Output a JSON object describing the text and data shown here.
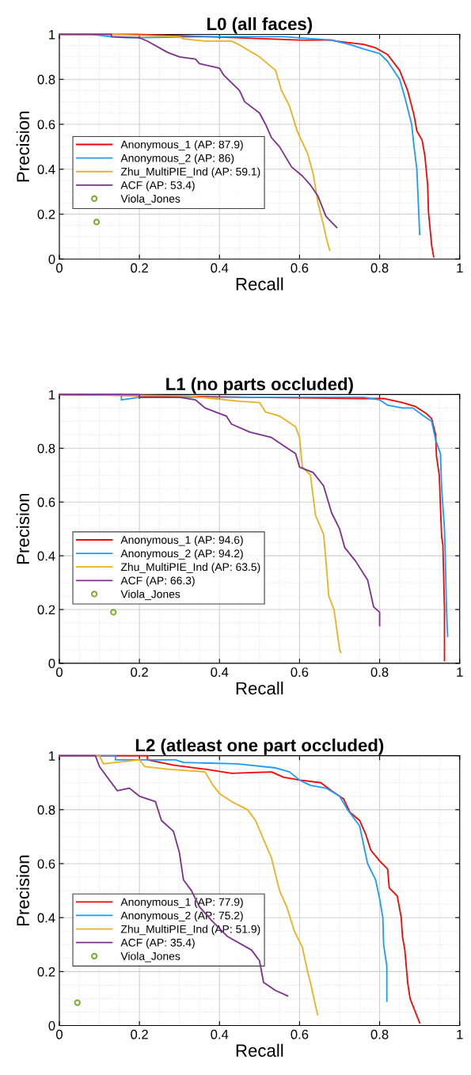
{
  "chart_data": [
    {
      "type": "line",
      "title": "L0 (all faces)",
      "xlabel": "Recall",
      "ylabel": "Precision",
      "xlim": [
        0,
        1
      ],
      "ylim": [
        0,
        1
      ],
      "xticks": [
        0,
        0.2,
        0.4,
        0.6,
        0.8,
        1
      ],
      "yticks": [
        0,
        0.2,
        0.4,
        0.6,
        0.8,
        1
      ],
      "grid": true,
      "legend": "left",
      "marker": "none",
      "line_style": "solid",
      "series": [
        {
          "name": "Anonymous_1 (AP: 87.9)",
          "color": "#ff0000",
          "x": [
            0,
            0.19,
            0.43,
            0.6,
            0.68,
            0.69,
            0.76,
            0.79,
            0.82,
            0.85,
            0.87,
            0.886,
            0.893,
            0.906,
            0.913,
            0.92,
            0.922,
            0.93,
            0.935
          ],
          "values": [
            1,
            1,
            0.986,
            0.975,
            0.975,
            0.97,
            0.955,
            0.94,
            0.91,
            0.84,
            0.75,
            0.64,
            0.57,
            0.53,
            0.46,
            0.33,
            0.21,
            0.06,
            0.01
          ]
        },
        {
          "name": "Anonymous_2 (AP: 86)",
          "color": "#1a9cff",
          "x": [
            0,
            0.08,
            0.128,
            0.167,
            0.2,
            0.36,
            0.56,
            0.68,
            0.725,
            0.76,
            0.8,
            0.82,
            0.85,
            0.863,
            0.88,
            0.886,
            0.893,
            0.9
          ],
          "values": [
            1,
            1,
            0.99,
            0.985,
            0.985,
            0.99,
            0.99,
            0.975,
            0.955,
            0.935,
            0.915,
            0.88,
            0.8,
            0.72,
            0.6,
            0.5,
            0.4,
            0.11
          ]
        },
        {
          "name": "Zhu_MultiPIE_Ind (AP: 59.1)",
          "color": "#edb120",
          "x": [
            0,
            0.13,
            0.3,
            0.31,
            0.364,
            0.43,
            0.443,
            0.5,
            0.52,
            0.54,
            0.555,
            0.575,
            0.594,
            0.62,
            0.634,
            0.646,
            0.66,
            0.666,
            0.675
          ],
          "values": [
            1,
            1,
            0.99,
            0.98,
            0.97,
            0.97,
            0.96,
            0.9,
            0.87,
            0.84,
            0.75,
            0.68,
            0.57,
            0.47,
            0.38,
            0.25,
            0.15,
            0.1,
            0.04
          ]
        },
        {
          "name": "ACF (AP: 53.4)",
          "color": "#7e2f8e",
          "x": [
            0,
            0.13,
            0.13,
            0.2,
            0.22,
            0.27,
            0.3,
            0.34,
            0.35,
            0.4,
            0.41,
            0.45,
            0.463,
            0.5,
            0.515,
            0.53,
            0.55,
            0.58,
            0.607,
            0.627,
            0.646,
            0.666,
            0.693
          ],
          "values": [
            1,
            1,
            0.99,
            0.985,
            0.97,
            0.92,
            0.9,
            0.89,
            0.87,
            0.85,
            0.82,
            0.75,
            0.7,
            0.65,
            0.6,
            0.54,
            0.5,
            0.41,
            0.37,
            0.33,
            0.28,
            0.19,
            0.14
          ]
        },
        {
          "name": "Viola_Jones",
          "type": "scatter",
          "marker": "circle",
          "color": "#77ac30",
          "x": [
            0.093
          ],
          "values": [
            0.165
          ]
        }
      ]
    },
    {
      "type": "line",
      "title": "L1 (no parts occluded)",
      "xlabel": "Recall",
      "ylabel": "Precision",
      "xlim": [
        0,
        1
      ],
      "ylim": [
        0,
        1
      ],
      "xticks": [
        0,
        0.2,
        0.4,
        0.6,
        0.8,
        1
      ],
      "yticks": [
        0,
        0.2,
        0.4,
        0.6,
        0.8,
        1
      ],
      "grid": true,
      "legend": "left",
      "marker": "none",
      "line_style": "solid",
      "series": [
        {
          "name": "Anonymous_1 (AP: 94.6)",
          "color": "#ff0000",
          "x": [
            0,
            0.48,
            0.76,
            0.81,
            0.857,
            0.89,
            0.916,
            0.93,
            0.94,
            0.942,
            0.949,
            0.952,
            0.955,
            0.958,
            0.962,
            0.962
          ],
          "values": [
            1,
            0.99,
            0.985,
            0.985,
            0.97,
            0.955,
            0.93,
            0.91,
            0.85,
            0.77,
            0.7,
            0.58,
            0.47,
            0.44,
            0.2,
            0.01
          ]
        },
        {
          "name": "Anonymous_2 (AP: 94.2)",
          "color": "#1a9cff",
          "x": [
            0,
            0.155,
            0.155,
            0.2,
            0.76,
            0.8,
            0.82,
            0.857,
            0.883,
            0.91,
            0.93,
            0.94,
            0.952,
            0.955,
            0.962,
            0.964,
            0.967,
            0.97
          ],
          "values": [
            1,
            1,
            0.98,
            0.99,
            0.99,
            0.98,
            0.96,
            0.95,
            0.95,
            0.92,
            0.9,
            0.83,
            0.78,
            0.65,
            0.5,
            0.4,
            0.2,
            0.1
          ]
        },
        {
          "name": "Zhu_MultiPIE_Ind (AP: 63.5)",
          "color": "#edb120",
          "x": [
            0,
            0.32,
            0.384,
            0.45,
            0.5,
            0.515,
            0.55,
            0.59,
            0.6,
            0.607,
            0.627,
            0.64,
            0.66,
            0.666,
            0.673,
            0.686,
            0.7,
            0.703
          ],
          "values": [
            1,
            0.995,
            0.985,
            0.975,
            0.97,
            0.935,
            0.92,
            0.88,
            0.84,
            0.73,
            0.7,
            0.55,
            0.48,
            0.38,
            0.25,
            0.2,
            0.05,
            0.04
          ]
        },
        {
          "name": "ACF (AP: 66.3)",
          "color": "#7e2f8e",
          "x": [
            0,
            0.2,
            0.2,
            0.3,
            0.34,
            0.364,
            0.417,
            0.43,
            0.476,
            0.53,
            0.56,
            0.59,
            0.6,
            0.634,
            0.66,
            0.68,
            0.7,
            0.713,
            0.74,
            0.77,
            0.785,
            0.8,
            0.8
          ],
          "values": [
            1,
            1,
            0.99,
            0.99,
            0.98,
            0.95,
            0.92,
            0.89,
            0.86,
            0.84,
            0.81,
            0.78,
            0.73,
            0.71,
            0.66,
            0.56,
            0.5,
            0.43,
            0.38,
            0.31,
            0.21,
            0.19,
            0.14
          ]
        },
        {
          "name": "Viola_Jones",
          "type": "scatter",
          "marker": "circle",
          "color": "#77ac30",
          "x": [
            0.135
          ],
          "values": [
            0.19
          ]
        }
      ]
    },
    {
      "type": "line",
      "title": "L2 (atleast one part occluded)",
      "xlabel": "Recall",
      "ylabel": "Precision",
      "xlim": [
        0,
        1
      ],
      "ylim": [
        0,
        1
      ],
      "xticks": [
        0,
        0.2,
        0.4,
        0.6,
        0.8,
        1
      ],
      "yticks": [
        0,
        0.2,
        0.4,
        0.6,
        0.8,
        1
      ],
      "grid": true,
      "legend": "left",
      "marker": "none",
      "line_style": "solid",
      "series": [
        {
          "name": "Anonymous_1 (AP: 77.9)",
          "color": "#ff0000",
          "x": [
            0,
            0.22,
            0.22,
            0.286,
            0.364,
            0.43,
            0.53,
            0.56,
            0.6,
            0.653,
            0.68,
            0.71,
            0.726,
            0.75,
            0.765,
            0.778,
            0.8,
            0.82,
            0.824,
            0.844,
            0.854,
            0.857,
            0.863,
            0.87,
            0.876,
            0.9
          ],
          "values": [
            1,
            1,
            0.985,
            0.965,
            0.95,
            0.935,
            0.94,
            0.92,
            0.91,
            0.9,
            0.87,
            0.84,
            0.79,
            0.76,
            0.71,
            0.65,
            0.61,
            0.58,
            0.51,
            0.48,
            0.4,
            0.33,
            0.28,
            0.16,
            0.1,
            0.01
          ]
        },
        {
          "name": "Anonymous_2 (AP: 75.2)",
          "color": "#1a9cff",
          "x": [
            0,
            0.14,
            0.14,
            0.29,
            0.31,
            0.443,
            0.54,
            0.575,
            0.6,
            0.627,
            0.666,
            0.7,
            0.72,
            0.75,
            0.77,
            0.79,
            0.8,
            0.808,
            0.81,
            0.818,
            0.818
          ],
          "values": [
            1,
            1,
            0.985,
            0.985,
            0.975,
            0.97,
            0.955,
            0.94,
            0.91,
            0.89,
            0.88,
            0.85,
            0.8,
            0.74,
            0.6,
            0.54,
            0.47,
            0.4,
            0.3,
            0.22,
            0.09
          ]
        },
        {
          "name": "Zhu_MultiPIE_Ind (AP: 51.9)",
          "color": "#edb120",
          "x": [
            0,
            0.1,
            0.11,
            0.2,
            0.213,
            0.27,
            0.364,
            0.384,
            0.4,
            0.43,
            0.47,
            0.49,
            0.51,
            0.53,
            0.55,
            0.568,
            0.587,
            0.607,
            0.62,
            0.627,
            0.645
          ],
          "values": [
            1,
            1,
            0.97,
            0.985,
            0.96,
            0.95,
            0.94,
            0.89,
            0.86,
            0.83,
            0.8,
            0.76,
            0.69,
            0.62,
            0.5,
            0.44,
            0.35,
            0.29,
            0.2,
            0.16,
            0.04
          ]
        },
        {
          "name": "ACF (AP: 35.4)",
          "color": "#7e2f8e",
          "x": [
            0,
            0.09,
            0.1,
            0.12,
            0.145,
            0.175,
            0.2,
            0.24,
            0.255,
            0.285,
            0.3,
            0.31,
            0.33,
            0.35,
            0.38,
            0.42,
            0.48,
            0.5,
            0.51,
            0.54,
            0.57
          ],
          "values": [
            1,
            1,
            0.96,
            0.92,
            0.87,
            0.88,
            0.85,
            0.83,
            0.76,
            0.72,
            0.64,
            0.54,
            0.5,
            0.44,
            0.39,
            0.33,
            0.28,
            0.24,
            0.16,
            0.13,
            0.11
          ]
        },
        {
          "name": "Viola_Jones",
          "type": "scatter",
          "marker": "circle",
          "color": "#77ac30",
          "x": [
            0.045
          ],
          "values": [
            0.085
          ]
        }
      ]
    }
  ]
}
